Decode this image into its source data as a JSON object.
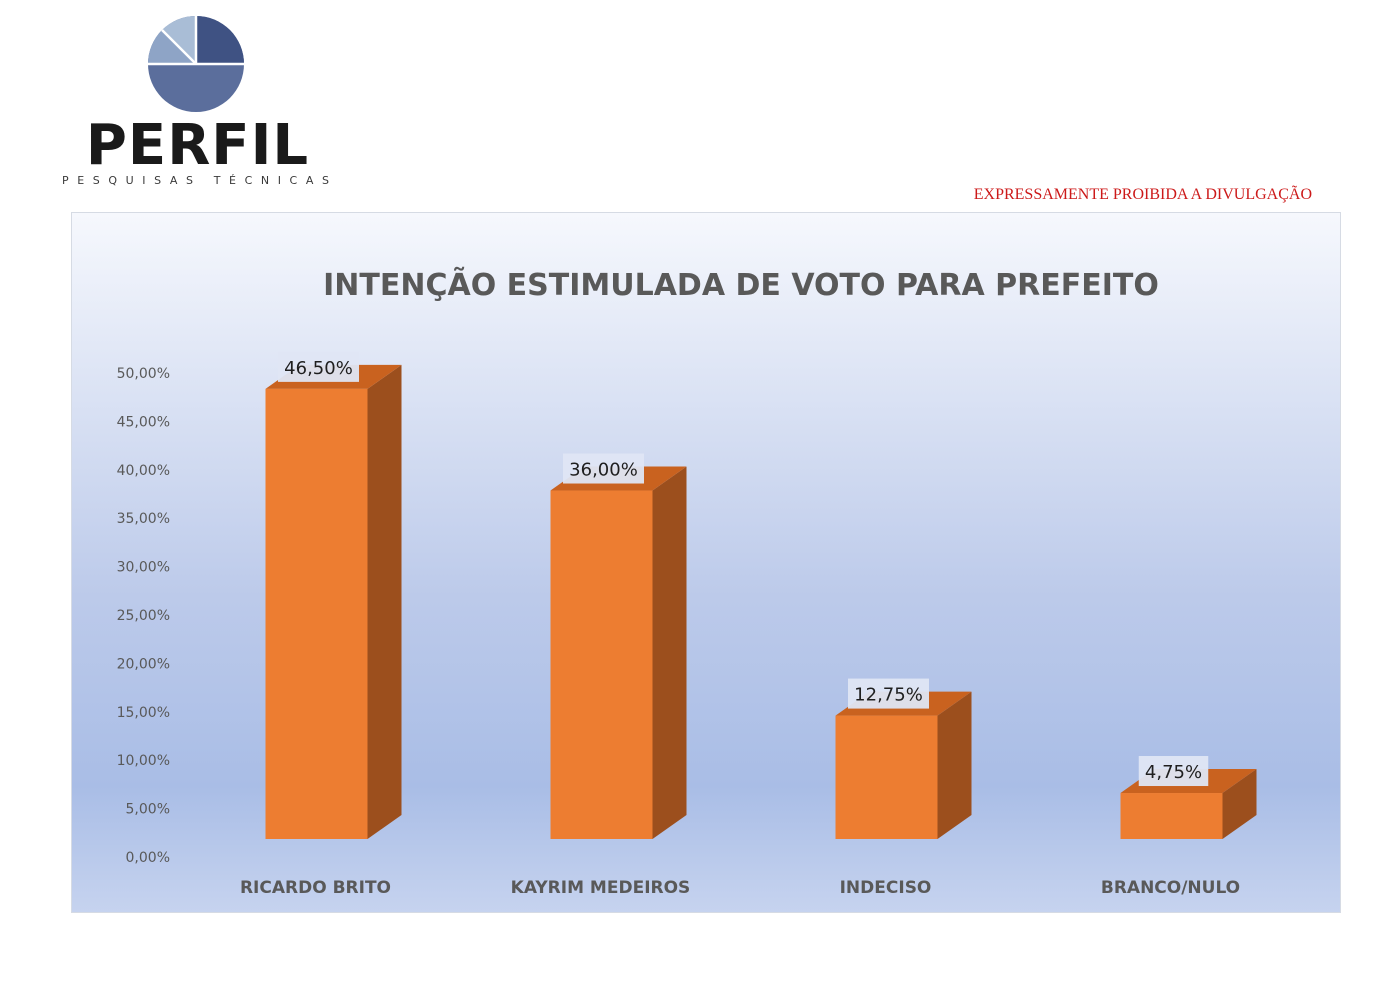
{
  "logo": {
    "word": "PERFIL",
    "subtitle": "PESQUISAS TÉCNICAS",
    "icon": "pie-chart-icon"
  },
  "warning": "EXPRESSAMENTE PROIBIDA A DIVULGAÇÃO",
  "colors": {
    "bar_front": "#ED7D31",
    "bar_side": "#9C4F1D",
    "bar_top": "#C9621F",
    "warning": "#CC1A1A",
    "logo_pie": "#5B6E9C"
  },
  "chart_data": {
    "type": "bar",
    "title": "INTENÇÃO ESTIMULADA DE VOTO PARA PREFEITO",
    "categories": [
      "RICARDO BRITO",
      "KAYRIM MEDEIROS",
      "INDECISO",
      "BRANCO/NULO"
    ],
    "values": [
      46.5,
      36.0,
      12.75,
      4.75
    ],
    "data_labels": [
      "46,50%",
      "36,00%",
      "12,75%",
      "4,75%"
    ],
    "ylim": [
      0,
      50
    ],
    "yticks": [
      "0,00%",
      "5,00%",
      "10,00%",
      "15,00%",
      "20,00%",
      "25,00%",
      "30,00%",
      "35,00%",
      "40,00%",
      "45,00%",
      "50,00%"
    ],
    "xlabel": "",
    "ylabel": "",
    "grid": false,
    "style": "3d-column"
  }
}
